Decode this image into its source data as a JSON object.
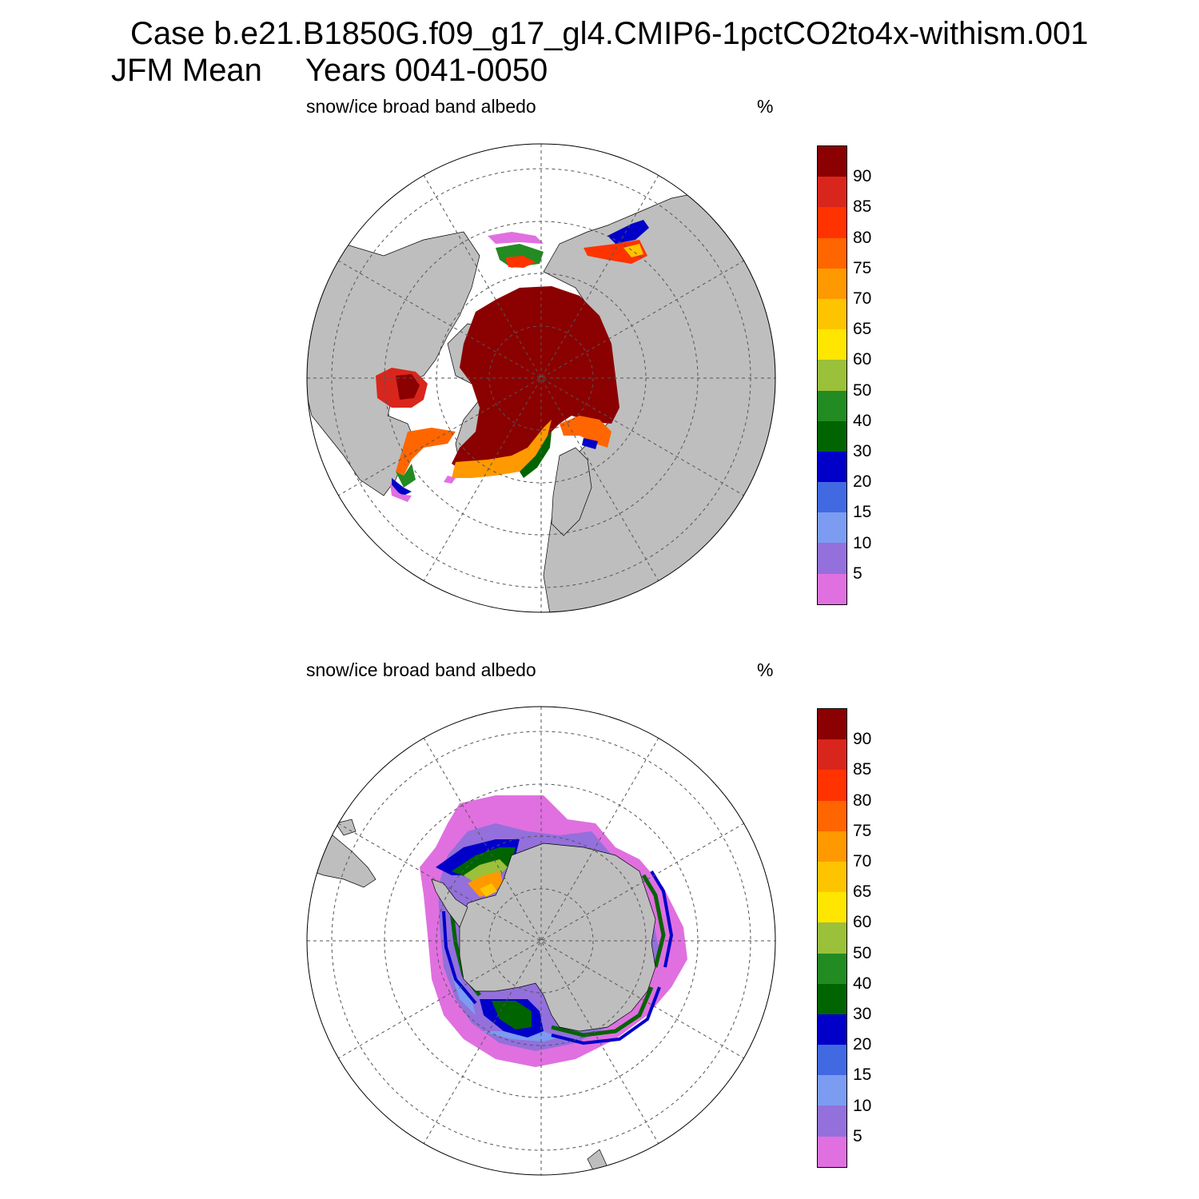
{
  "title": {
    "case": "Case b.e21.B1850G.f09_g17_gl4.CMIP6-1pctCO2to4x-withism.001",
    "season": "JFM Mean",
    "years": "Years 0041-0050"
  },
  "panels": [
    {
      "id": "north",
      "hemisphere": "Northern",
      "variable_label": "snow/ice broad band albedo",
      "units": "%"
    },
    {
      "id": "south",
      "hemisphere": "Southern",
      "variable_label": "snow/ice broad band albedo",
      "units": "%"
    }
  ],
  "colorbar": {
    "labels": [
      "90",
      "85",
      "80",
      "75",
      "70",
      "65",
      "60",
      "50",
      "40",
      "30",
      "20",
      "15",
      "10",
      "5"
    ],
    "colors": [
      "#8b0000",
      "#d9261c",
      "#ff3300",
      "#ff6600",
      "#ff9900",
      "#ffc400",
      "#ffe600",
      "#9bc03a",
      "#228b22",
      "#006400",
      "#0000c8",
      "#4169e1",
      "#7b9cf0",
      "#9370db",
      "#e070e0"
    ]
  },
  "colors": {
    "land": "#bebebe",
    "ocean": "#ffffff",
    "grid": "#555555"
  }
}
